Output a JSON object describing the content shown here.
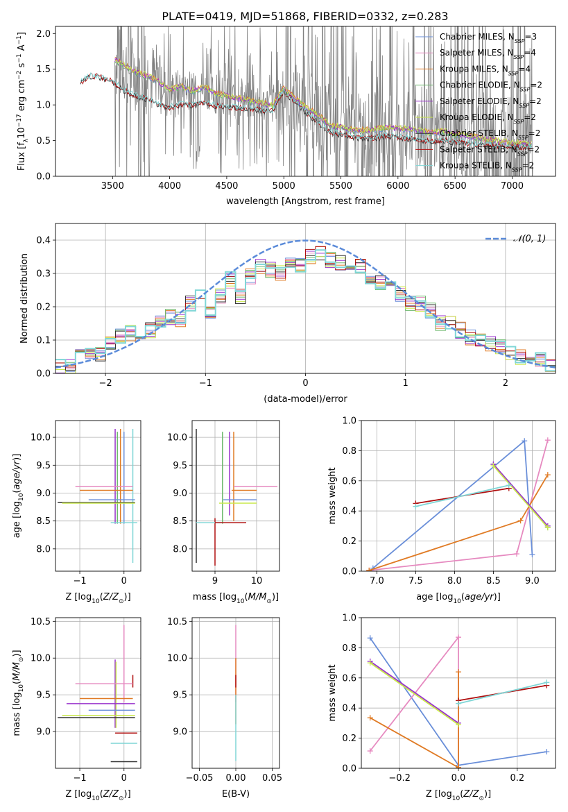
{
  "title": "PLATE=0419, MJD=51868, FIBERID=0332, z=0.283",
  "colors": {
    "Chabrier MILES": "#6a8fd9",
    "Salpeter MILES": "#e68ac0",
    "Kroupa MILES": "#e07b25",
    "Chabrier ELODIE": "#6bb86b",
    "Salpeter ELODIE": "#9932cc",
    "Kroupa ELODIE": "#c9e84a",
    "Chabrier STELIB": "#333333",
    "Salpeter STELIB": "#b01010",
    "Kroupa STELIB": "#7fd6d6",
    "data": "#808080",
    "gaussian": "#5b8bd9"
  },
  "chart_data": [
    {
      "id": "spectrum",
      "type": "line",
      "xlabel": "wavelength [Angstrom, rest frame]",
      "ylabel": "Flux [f_λ10^-17 erg cm^-2 s^-1 A^-1]",
      "xlim": [
        3000,
        7380
      ],
      "ylim": [
        0,
        2.1
      ],
      "xticks": [
        3500,
        4000,
        4500,
        5000,
        5500,
        6000,
        6500,
        7000
      ],
      "yticks": [
        0.0,
        0.5,
        1.0,
        1.5,
        2.0
      ],
      "grid": false,
      "legend_position": "top-right",
      "legend": [
        {
          "model": "Chabrier MILES",
          "nssp": "3"
        },
        {
          "model": "Salpeter MILES",
          "nssp": "4"
        },
        {
          "model": "Kroupa MILES",
          "nssp": "4"
        },
        {
          "model": "Chabrier ELODIE",
          "nssp": "2"
        },
        {
          "model": "Salpeter ELODIE",
          "nssp": "2"
        },
        {
          "model": "Kroupa ELODIE",
          "nssp": "2"
        },
        {
          "model": "Chabrier STELIB",
          "nssp": "2"
        },
        {
          "model": "Salpeter STELIB",
          "nssp": "2"
        },
        {
          "model": "Kroupa STELIB",
          "nssp": "2"
        }
      ],
      "model_continuum": {
        "x": [
          3520,
          3600,
          3700,
          3800,
          3900,
          4000,
          4100,
          4200,
          4300,
          4400,
          4500,
          4600,
          4700,
          4800,
          4900,
          5000,
          5100,
          5200,
          5300,
          5400,
          5500,
          5600,
          5700,
          5800,
          5900,
          6000,
          6100,
          6200,
          6300,
          6400,
          6500,
          6600,
          6700,
          6800,
          6900,
          7000,
          7100,
          7170
        ],
        "y": [
          1.62,
          1.55,
          1.45,
          1.4,
          1.32,
          1.2,
          1.25,
          1.18,
          1.24,
          1.15,
          1.12,
          1.08,
          1.05,
          1.02,
          0.98,
          1.22,
          1.08,
          0.95,
          0.85,
          0.7,
          0.68,
          0.64,
          0.63,
          0.65,
          0.67,
          0.66,
          0.65,
          0.62,
          0.6,
          0.62,
          0.58,
          0.56,
          0.53,
          0.5,
          0.48,
          0.46,
          0.45,
          0.44
        ]
      },
      "stelib_continuum": {
        "x": [
          3220,
          3300,
          3400,
          3500,
          3600,
          3700,
          3800,
          3900,
          4000,
          4100,
          4200,
          4300,
          4400,
          4500,
          4600,
          4700,
          4800,
          4900,
          5000,
          5100,
          5200,
          5300,
          5400,
          5500,
          5600,
          5700,
          5800,
          5900,
          6000,
          6100,
          6200,
          6300,
          6400,
          6500,
          6600,
          6700,
          6800,
          6900,
          7000,
          7100,
          7170
        ],
        "y": [
          1.3,
          1.4,
          1.38,
          1.32,
          1.2,
          1.12,
          1.08,
          1.0,
          0.95,
          1.0,
          0.98,
          1.02,
          0.98,
          0.96,
          0.95,
          0.94,
          0.92,
          0.9,
          1.18,
          1.02,
          0.88,
          0.75,
          0.62,
          0.58,
          0.55,
          0.52,
          0.53,
          0.56,
          0.54,
          0.52,
          0.5,
          0.48,
          0.5,
          0.47,
          0.45,
          0.43,
          0.42,
          0.41,
          0.4,
          0.4,
          0.4
        ]
      }
    },
    {
      "id": "residuals",
      "type": "line",
      "xlabel": "(data-model)/error",
      "ylabel": "Normed distribution",
      "xlim": [
        -2.5,
        2.5
      ],
      "ylim": [
        0,
        0.45
      ],
      "xticks": [
        -2,
        -1,
        0,
        1,
        2
      ],
      "yticks": [
        0.0,
        0.1,
        0.2,
        0.3,
        0.4
      ],
      "grid": true,
      "legend_label": "𝒩(0, 1)",
      "legend_position": "top-right",
      "bin_edges_start": -2.5,
      "bin_width": 0.1,
      "hist_values": [
        0.02,
        0.02,
        0.05,
        0.05,
        0.06,
        0.09,
        0.11,
        0.12,
        0.11,
        0.13,
        0.15,
        0.17,
        0.16,
        0.21,
        0.24,
        0.19,
        0.23,
        0.28,
        0.23,
        0.29,
        0.32,
        0.31,
        0.3,
        0.34,
        0.33,
        0.35,
        0.36,
        0.34,
        0.33,
        0.3,
        0.32,
        0.29,
        0.27,
        0.26,
        0.24,
        0.21,
        0.21,
        0.19,
        0.15,
        0.15,
        0.13,
        0.11,
        0.1,
        0.09,
        0.08,
        0.06,
        0.05,
        0.04,
        0.04,
        0.03
      ]
    },
    {
      "id": "age_vs_Z",
      "type": "scatter",
      "xlabel": "Z [log10(Z/Z⊙)]",
      "ylabel": "age  [log10(age/yr)]",
      "xlim": [
        -1.55,
        0.38
      ],
      "ylim": [
        7.6,
        10.3
      ],
      "xticks": [
        -1,
        0
      ],
      "yticks": [
        8.0,
        8.5,
        9.0,
        9.5,
        10.0
      ],
      "grid": true,
      "vlines": [
        {
          "model": "Salpeter ELODIE",
          "x": -0.2,
          "y0": 8.45,
          "y1": 10.15
        },
        {
          "model": "Chabrier ELODIE",
          "x": -0.15,
          "y0": 8.45,
          "y1": 10.1
        },
        {
          "model": "Kroupa MILES",
          "x": -0.08,
          "y0": 8.45,
          "y1": 10.15
        },
        {
          "model": "Chabrier MILES",
          "x": 0.0,
          "y0": 8.45,
          "y1": 10.1
        },
        {
          "model": "Kroupa STELIB",
          "x": 0.2,
          "y0": 7.75,
          "y1": 10.15
        }
      ],
      "hlines": [
        {
          "model": "Salpeter MILES",
          "y": 9.12,
          "x0": -1.1,
          "x1": 0.2
        },
        {
          "model": "Kroupa MILES",
          "y": 9.05,
          "x0": -1.0,
          "x1": 0.2
        },
        {
          "model": "Chabrier MILES",
          "y": 8.88,
          "x0": -0.8,
          "x1": 0.25
        },
        {
          "model": "Chabrier STELIB",
          "y": 8.83,
          "x0": -1.5,
          "x1": 0.25
        },
        {
          "model": "Kroupa ELODIE",
          "y": 8.82,
          "x0": -1.4,
          "x1": 0.25
        },
        {
          "model": "Kroupa STELIB",
          "y": 8.47,
          "x0": -0.3,
          "x1": 0.3
        }
      ]
    },
    {
      "id": "age_vs_mass",
      "type": "scatter",
      "xlabel": "mass [log10(M/M⊙)]",
      "ylabel": "",
      "xlim": [
        8.45,
        10.55
      ],
      "ylim": [
        7.6,
        10.3
      ],
      "xticks": [
        9,
        10
      ],
      "yticks": [
        8.0,
        8.5,
        9.0,
        9.5,
        10.0
      ],
      "grid": true,
      "vlines": [
        {
          "model": "Chabrier STELIB",
          "x": 8.55,
          "y0": 7.75,
          "y1": 10.15
        },
        {
          "model": "Salpeter STELIB",
          "x": 9.0,
          "y0": 7.7,
          "y1": 8.55
        },
        {
          "model": "Chabrier ELODIE",
          "x": 9.18,
          "y0": 8.45,
          "y1": 10.1
        },
        {
          "model": "Salpeter ELODIE",
          "x": 9.35,
          "y0": 8.6,
          "y1": 10.1
        },
        {
          "model": "Kroupa MILES",
          "x": 9.45,
          "y0": 8.5,
          "y1": 10.1
        }
      ],
      "hlines": [
        {
          "model": "Salpeter MILES",
          "y": 9.12,
          "x0": 9.45,
          "x1": 10.5
        },
        {
          "model": "Kroupa MILES",
          "y": 9.05,
          "x0": 9.4,
          "x1": 10.0
        },
        {
          "model": "Chabrier MILES",
          "y": 8.88,
          "x0": 9.2,
          "x1": 10.0
        },
        {
          "model": "Kroupa ELODIE",
          "y": 8.82,
          "x0": 9.1,
          "x1": 10.0
        },
        {
          "model": "Kroupa STELIB",
          "y": 8.47,
          "x0": 8.55,
          "x1": 9.2
        },
        {
          "model": "Salpeter STELIB",
          "y": 8.47,
          "x0": 9.0,
          "x1": 9.75
        }
      ]
    },
    {
      "id": "weight_vs_age",
      "type": "line",
      "xlabel": "age  [log10(age/yr)]",
      "ylabel": "mass weight",
      "xlim": [
        6.8,
        9.3
      ],
      "ylim": [
        0.0,
        1.0
      ],
      "xticks": [
        7.0,
        7.5,
        8.0,
        8.5,
        9.0
      ],
      "yticks": [
        0.0,
        0.2,
        0.4,
        0.6,
        0.8,
        1.0
      ],
      "grid": true,
      "series": [
        {
          "model": "Chabrier MILES",
          "x": [
            6.95,
            8.9,
            9.0
          ],
          "y": [
            0.02,
            0.865,
            0.11
          ]
        },
        {
          "model": "Salpeter MILES",
          "x": [
            6.9,
            8.8,
            9.2
          ],
          "y": [
            0.005,
            0.115,
            0.87
          ]
        },
        {
          "model": "Kroupa MILES",
          "x": [
            6.9,
            8.85,
            9.2
          ],
          "y": [
            0.005,
            0.335,
            0.64
          ]
        },
        {
          "model": "Chabrier ELODIE",
          "x": [
            8.5,
            9.2
          ],
          "y": [
            0.71,
            0.29
          ]
        },
        {
          "model": "Salpeter ELODIE",
          "x": [
            8.5,
            9.2
          ],
          "y": [
            0.71,
            0.3
          ]
        },
        {
          "model": "Kroupa ELODIE",
          "x": [
            8.5,
            9.2
          ],
          "y": [
            0.7,
            0.29
          ]
        },
        {
          "model": "Salpeter STELIB",
          "x": [
            7.5,
            8.7
          ],
          "y": [
            0.45,
            0.55
          ]
        },
        {
          "model": "Kroupa STELIB",
          "x": [
            7.5,
            8.7
          ],
          "y": [
            0.43,
            0.57
          ]
        }
      ]
    },
    {
      "id": "mass_vs_Z",
      "type": "scatter",
      "xlabel": "Z [log10(Z/Z⊙)]",
      "ylabel": "mass [log10(M/M⊙)]",
      "xlim": [
        -1.55,
        0.38
      ],
      "ylim": [
        8.5,
        10.55
      ],
      "xticks": [
        -1,
        0
      ],
      "yticks": [
        9.0,
        9.5,
        10.0,
        10.5
      ],
      "grid": true,
      "vlines": [
        {
          "model": "Salpeter ELODIE",
          "x": -0.2,
          "y0": 9.05,
          "y1": 9.98
        },
        {
          "model": "Kroupa ELODIE",
          "x": -0.18,
          "y0": 9.05,
          "y1": 9.95
        },
        {
          "model": "Salpeter MILES",
          "x": 0.0,
          "y0": 9.4,
          "y1": 10.45
        },
        {
          "model": "Salpeter STELIB",
          "x": 0.2,
          "y0": 9.6,
          "y1": 9.77
        }
      ],
      "hlines": [
        {
          "model": "Salpeter MILES",
          "y": 9.65,
          "x0": -1.1,
          "x1": 0.2
        },
        {
          "model": "Kroupa MILES",
          "y": 9.45,
          "x0": -1.0,
          "x1": 0.2
        },
        {
          "model": "Salpeter ELODIE",
          "y": 9.38,
          "x0": -1.3,
          "x1": 0.25
        },
        {
          "model": "Chabrier MILES",
          "y": 9.29,
          "x0": -0.8,
          "x1": 0.25
        },
        {
          "model": "Kroupa ELODIE",
          "y": 9.22,
          "x0": -1.4,
          "x1": 0.25
        },
        {
          "model": "Chabrier STELIB",
          "y": 9.19,
          "x0": -1.5,
          "x1": 0.25
        },
        {
          "model": "Salpeter STELIB",
          "y": 8.98,
          "x0": -0.2,
          "x1": 0.3
        },
        {
          "model": "Kroupa STELIB",
          "y": 8.84,
          "x0": -0.3,
          "x1": 0.3
        },
        {
          "model": "Chabrier STELIB",
          "y": 8.59,
          "x0": -0.3,
          "x1": 0.3
        }
      ]
    },
    {
      "id": "mass_vs_ebv",
      "type": "scatter",
      "xlabel": "E(B-V)",
      "ylabel": "",
      "xlim": [
        -0.06,
        0.06
      ],
      "ylim": [
        8.5,
        10.55
      ],
      "xticks": [
        -0.05,
        0.0,
        0.05
      ],
      "yticks": [
        9.0,
        9.5,
        10.0,
        10.5
      ],
      "grid": true,
      "vlines": [
        {
          "model": "Salpeter MILES",
          "x": 0.0,
          "y0": 9.4,
          "y1": 10.45
        },
        {
          "model": "Kroupa MILES",
          "x": 0.0,
          "y0": 9.1,
          "y1": 10.0
        },
        {
          "model": "Salpeter STELIB",
          "x": 0.0,
          "y0": 9.6,
          "y1": 9.77
        },
        {
          "model": "Kroupa STELIB",
          "x": 0.0,
          "y0": 8.6,
          "y1": 9.5
        }
      ]
    },
    {
      "id": "weight_vs_Z",
      "type": "line",
      "xlabel": "Z [log10(Z/Z⊙)]",
      "ylabel": "mass weight",
      "xlim": [
        -0.33,
        0.33
      ],
      "ylim": [
        0.0,
        1.0
      ],
      "xticks": [
        -0.2,
        0.0,
        0.2
      ],
      "yticks": [
        0.0,
        0.2,
        0.4,
        0.6,
        0.8,
        1.0
      ],
      "grid": true,
      "series": [
        {
          "model": "Chabrier MILES",
          "x": [
            -0.3,
            0.0,
            0.3
          ],
          "y": [
            0.865,
            0.02,
            0.11
          ]
        },
        {
          "model": "Salpeter MILES",
          "x": [
            -0.3,
            0.0,
            0.0
          ],
          "y": [
            0.115,
            0.87,
            0.005
          ]
        },
        {
          "model": "Kroupa MILES",
          "x": [
            -0.3,
            0.0,
            0.0
          ],
          "y": [
            0.335,
            0.005,
            0.64
          ]
        },
        {
          "model": "Salpeter ELODIE",
          "x": [
            -0.3,
            0.0
          ],
          "y": [
            0.71,
            0.3
          ]
        },
        {
          "model": "Kroupa ELODIE",
          "x": [
            -0.3,
            0.0
          ],
          "y": [
            0.7,
            0.29
          ]
        },
        {
          "model": "Salpeter STELIB",
          "x": [
            0.0,
            0.3
          ],
          "y": [
            0.45,
            0.55
          ]
        },
        {
          "model": "Kroupa STELIB",
          "x": [
            0.0,
            0.3
          ],
          "y": [
            0.43,
            0.57
          ]
        }
      ]
    }
  ]
}
